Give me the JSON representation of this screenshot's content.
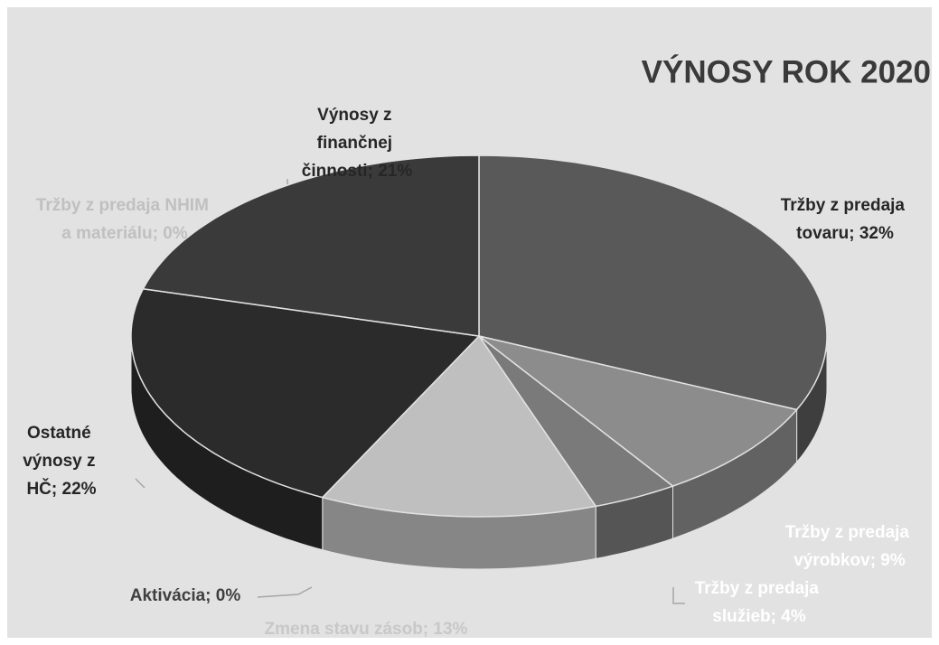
{
  "chart_data": {
    "type": "pie",
    "title": "VÝNOSY ROK 2020",
    "values": [
      32,
      9,
      4,
      13,
      0,
      22,
      0,
      21
    ],
    "value_labels": [
      "Tržby z predaja tovaru; 32%",
      "Tržby z predaja výrobkov; 9%",
      "Tržby z predaja služieb; 4%",
      "Zmena stavu zásob; 13%",
      "Aktivácia; 0%",
      "Ostatné výnosy z HČ; 22%",
      "Tržby z predaja NHIM a materiálu; 0%",
      "Výnosy z finančnej činnosti; 21%"
    ],
    "colors": [
      "#595959",
      "#8c8c8c",
      "#7a7a7a",
      "#bfbfbf",
      "#d0d0d0",
      "#2b2b2b",
      "#dedede",
      "#3a3a3a"
    ],
    "label_colors": [
      "#262626",
      "#ffffff",
      "#ffffff",
      "#c8c8c8",
      "#404040",
      "#262626",
      "#c0c0c0",
      "#262626"
    ]
  }
}
